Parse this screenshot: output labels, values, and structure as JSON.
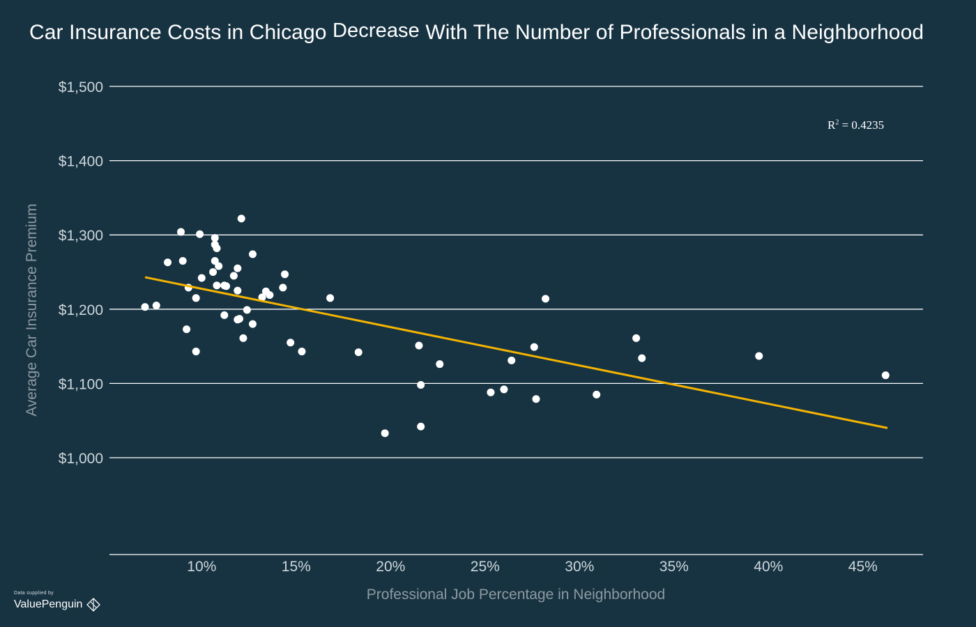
{
  "title_part1": "Car Insurance Costs in Chicago",
  "title_part2": "Decrease",
  "title_part3": "With The Number of Professionals in a Neighborhood",
  "brand": {
    "supplied_by": "Data supplied by",
    "name": "ValuePenguin",
    "logo_icon": "penguin-diamond-icon"
  },
  "colors": {
    "background": "#173342",
    "points": "#ffffff",
    "trendline": "#f5b400",
    "grid": "#ffffff",
    "axis_text": "#ced6da",
    "axis_title": "#8e9aa0"
  },
  "r2_label": "R",
  "r2_exp": "2",
  "r2_value": " = 0.4235",
  "chart_data": {
    "type": "scatter",
    "xlabel": "Professional Job Percentage in Neighborhood",
    "ylabel": "Average Car Insurance Premium",
    "xlim": [
      5,
      48
    ],
    "ylim": [
      875,
      1500
    ],
    "x_ticks": [
      10,
      15,
      20,
      25,
      30,
      35,
      40,
      45
    ],
    "x_tick_labels": [
      "10%",
      "15%",
      "20%",
      "25%",
      "30%",
      "35%",
      "40%",
      "45%"
    ],
    "y_ticks": [
      1000,
      1100,
      1200,
      1300,
      1400,
      1500
    ],
    "y_tick_labels": [
      "$1,000",
      "$1,100",
      "$1,200",
      "$1,300",
      "$1,400",
      "$1,500"
    ],
    "grid": true,
    "trendline": {
      "x": [
        7.0,
        46.3
      ],
      "y": [
        1243,
        1040
      ]
    },
    "r_squared": 0.4235,
    "points": [
      {
        "x": 7.0,
        "y": 1203
      },
      {
        "x": 7.6,
        "y": 1205
      },
      {
        "x": 8.2,
        "y": 1263
      },
      {
        "x": 8.9,
        "y": 1304
      },
      {
        "x": 9.0,
        "y": 1265
      },
      {
        "x": 9.2,
        "y": 1173
      },
      {
        "x": 9.3,
        "y": 1229
      },
      {
        "x": 9.7,
        "y": 1143
      },
      {
        "x": 9.7,
        "y": 1215
      },
      {
        "x": 9.9,
        "y": 1301
      },
      {
        "x": 10.0,
        "y": 1242
      },
      {
        "x": 10.6,
        "y": 1250
      },
      {
        "x": 10.7,
        "y": 1296
      },
      {
        "x": 10.7,
        "y": 1287
      },
      {
        "x": 10.7,
        "y": 1265
      },
      {
        "x": 10.8,
        "y": 1282
      },
      {
        "x": 10.8,
        "y": 1232
      },
      {
        "x": 10.9,
        "y": 1258
      },
      {
        "x": 11.2,
        "y": 1232
      },
      {
        "x": 11.2,
        "y": 1192
      },
      {
        "x": 11.3,
        "y": 1231
      },
      {
        "x": 11.7,
        "y": 1245
      },
      {
        "x": 11.9,
        "y": 1255
      },
      {
        "x": 11.9,
        "y": 1225
      },
      {
        "x": 11.9,
        "y": 1186
      },
      {
        "x": 12.0,
        "y": 1187
      },
      {
        "x": 12.1,
        "y": 1322
      },
      {
        "x": 12.2,
        "y": 1161
      },
      {
        "x": 12.4,
        "y": 1199
      },
      {
        "x": 12.7,
        "y": 1274
      },
      {
        "x": 12.7,
        "y": 1180
      },
      {
        "x": 13.2,
        "y": 1216
      },
      {
        "x": 13.4,
        "y": 1224
      },
      {
        "x": 13.6,
        "y": 1219
      },
      {
        "x": 14.3,
        "y": 1229
      },
      {
        "x": 14.4,
        "y": 1247
      },
      {
        "x": 14.7,
        "y": 1155
      },
      {
        "x": 15.3,
        "y": 1143
      },
      {
        "x": 16.8,
        "y": 1215
      },
      {
        "x": 18.3,
        "y": 1142
      },
      {
        "x": 19.7,
        "y": 1033
      },
      {
        "x": 21.5,
        "y": 1151
      },
      {
        "x": 21.6,
        "y": 1098
      },
      {
        "x": 21.6,
        "y": 1042
      },
      {
        "x": 22.6,
        "y": 1126
      },
      {
        "x": 25.3,
        "y": 1088
      },
      {
        "x": 26.0,
        "y": 1092
      },
      {
        "x": 26.4,
        "y": 1131
      },
      {
        "x": 27.6,
        "y": 1149
      },
      {
        "x": 27.7,
        "y": 1079
      },
      {
        "x": 28.2,
        "y": 1214
      },
      {
        "x": 30.9,
        "y": 1085
      },
      {
        "x": 33.0,
        "y": 1161
      },
      {
        "x": 33.3,
        "y": 1134
      },
      {
        "x": 39.5,
        "y": 1137
      },
      {
        "x": 46.2,
        "y": 1111
      }
    ]
  }
}
